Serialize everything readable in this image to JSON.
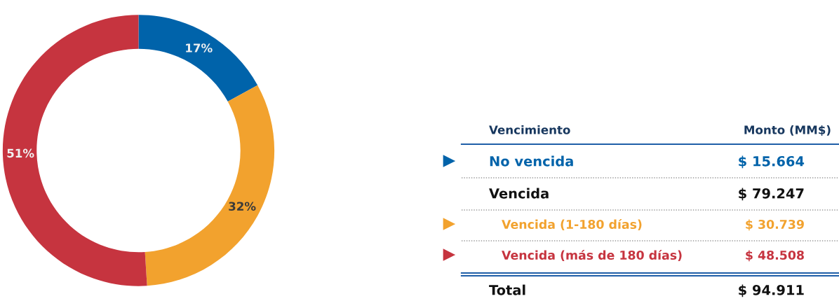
{
  "chart_data": [
    {
      "type": "donut",
      "categories": [
        null,
        null,
        null
      ],
      "values": [
        17,
        32,
        51
      ],
      "colors": [
        "#0063aa",
        "#f2a22e",
        "#c6343f"
      ],
      "value_labels": [
        "17%",
        "32%",
        "51%"
      ]
    },
    {
      "type": "other",
      "annotations": [
        "Vencimiento",
        "Monto (MM$)"
      ],
      "categories": [
        "No vencida",
        "Vencida",
        "Vencida (1-180 días)",
        "Vencida (más de 180 días)",
        "Total"
      ],
      "value_labels": [
        "$ 15.664",
        "$ 79.247",
        "$ 30.739",
        "$ 48.508",
        "$ 94.911"
      ],
      "colors": [
        "#0063aa",
        null,
        "#f2a22e",
        "#c6343f",
        null
      ]
    }
  ]
}
